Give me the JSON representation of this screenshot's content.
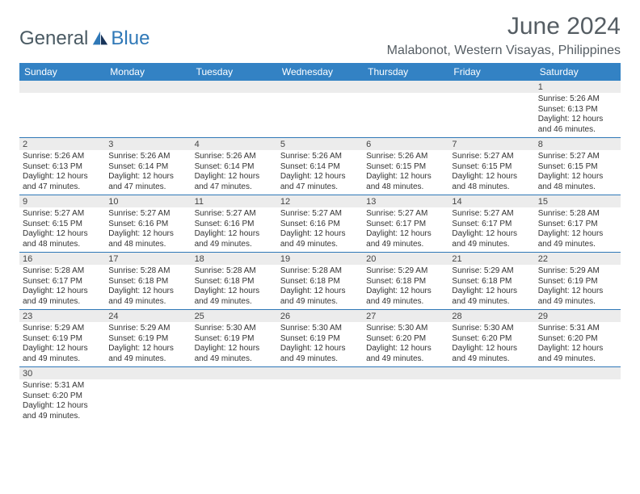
{
  "brand": {
    "part1": "General",
    "part2": "Blue"
  },
  "title": "June 2024",
  "location": "Malabonot, Western Visayas, Philippines",
  "colors": {
    "header_bg": "#3382c4",
    "rule": "#2f78b7",
    "numrow_bg": "#ececec",
    "text": "#333333",
    "title_text": "#555d63"
  },
  "dow": [
    "Sunday",
    "Monday",
    "Tuesday",
    "Wednesday",
    "Thursday",
    "Friday",
    "Saturday"
  ],
  "weeks": [
    [
      null,
      null,
      null,
      null,
      null,
      null,
      {
        "n": "1",
        "sr": "5:26 AM",
        "ss": "6:13 PM",
        "dl": "12 hours and 46 minutes."
      }
    ],
    [
      {
        "n": "2",
        "sr": "5:26 AM",
        "ss": "6:13 PM",
        "dl": "12 hours and 47 minutes."
      },
      {
        "n": "3",
        "sr": "5:26 AM",
        "ss": "6:14 PM",
        "dl": "12 hours and 47 minutes."
      },
      {
        "n": "4",
        "sr": "5:26 AM",
        "ss": "6:14 PM",
        "dl": "12 hours and 47 minutes."
      },
      {
        "n": "5",
        "sr": "5:26 AM",
        "ss": "6:14 PM",
        "dl": "12 hours and 47 minutes."
      },
      {
        "n": "6",
        "sr": "5:26 AM",
        "ss": "6:15 PM",
        "dl": "12 hours and 48 minutes."
      },
      {
        "n": "7",
        "sr": "5:27 AM",
        "ss": "6:15 PM",
        "dl": "12 hours and 48 minutes."
      },
      {
        "n": "8",
        "sr": "5:27 AM",
        "ss": "6:15 PM",
        "dl": "12 hours and 48 minutes."
      }
    ],
    [
      {
        "n": "9",
        "sr": "5:27 AM",
        "ss": "6:15 PM",
        "dl": "12 hours and 48 minutes."
      },
      {
        "n": "10",
        "sr": "5:27 AM",
        "ss": "6:16 PM",
        "dl": "12 hours and 48 minutes."
      },
      {
        "n": "11",
        "sr": "5:27 AM",
        "ss": "6:16 PM",
        "dl": "12 hours and 49 minutes."
      },
      {
        "n": "12",
        "sr": "5:27 AM",
        "ss": "6:16 PM",
        "dl": "12 hours and 49 minutes."
      },
      {
        "n": "13",
        "sr": "5:27 AM",
        "ss": "6:17 PM",
        "dl": "12 hours and 49 minutes."
      },
      {
        "n": "14",
        "sr": "5:27 AM",
        "ss": "6:17 PM",
        "dl": "12 hours and 49 minutes."
      },
      {
        "n": "15",
        "sr": "5:28 AM",
        "ss": "6:17 PM",
        "dl": "12 hours and 49 minutes."
      }
    ],
    [
      {
        "n": "16",
        "sr": "5:28 AM",
        "ss": "6:17 PM",
        "dl": "12 hours and 49 minutes."
      },
      {
        "n": "17",
        "sr": "5:28 AM",
        "ss": "6:18 PM",
        "dl": "12 hours and 49 minutes."
      },
      {
        "n": "18",
        "sr": "5:28 AM",
        "ss": "6:18 PM",
        "dl": "12 hours and 49 minutes."
      },
      {
        "n": "19",
        "sr": "5:28 AM",
        "ss": "6:18 PM",
        "dl": "12 hours and 49 minutes."
      },
      {
        "n": "20",
        "sr": "5:29 AM",
        "ss": "6:18 PM",
        "dl": "12 hours and 49 minutes."
      },
      {
        "n": "21",
        "sr": "5:29 AM",
        "ss": "6:18 PM",
        "dl": "12 hours and 49 minutes."
      },
      {
        "n": "22",
        "sr": "5:29 AM",
        "ss": "6:19 PM",
        "dl": "12 hours and 49 minutes."
      }
    ],
    [
      {
        "n": "23",
        "sr": "5:29 AM",
        "ss": "6:19 PM",
        "dl": "12 hours and 49 minutes."
      },
      {
        "n": "24",
        "sr": "5:29 AM",
        "ss": "6:19 PM",
        "dl": "12 hours and 49 minutes."
      },
      {
        "n": "25",
        "sr": "5:30 AM",
        "ss": "6:19 PM",
        "dl": "12 hours and 49 minutes."
      },
      {
        "n": "26",
        "sr": "5:30 AM",
        "ss": "6:19 PM",
        "dl": "12 hours and 49 minutes."
      },
      {
        "n": "27",
        "sr": "5:30 AM",
        "ss": "6:20 PM",
        "dl": "12 hours and 49 minutes."
      },
      {
        "n": "28",
        "sr": "5:30 AM",
        "ss": "6:20 PM",
        "dl": "12 hours and 49 minutes."
      },
      {
        "n": "29",
        "sr": "5:31 AM",
        "ss": "6:20 PM",
        "dl": "12 hours and 49 minutes."
      }
    ],
    [
      {
        "n": "30",
        "sr": "5:31 AM",
        "ss": "6:20 PM",
        "dl": "12 hours and 49 minutes."
      },
      null,
      null,
      null,
      null,
      null,
      null
    ]
  ],
  "labels": {
    "sunrise": "Sunrise: ",
    "sunset": "Sunset: ",
    "daylight": "Daylight: "
  }
}
